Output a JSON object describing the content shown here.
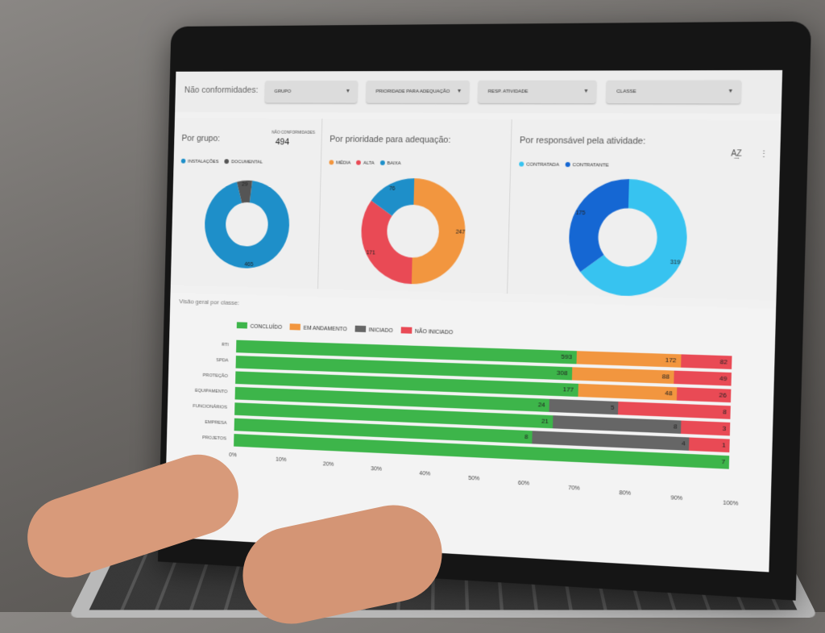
{
  "dashboard": {
    "title": "Não conformidades:",
    "filters": [
      {
        "label": "Grupo"
      },
      {
        "label": "Prioridade para adequação"
      },
      {
        "label": "Resp. atividade"
      },
      {
        "label": "Classe"
      }
    ]
  },
  "panels": {
    "grupo": {
      "title": "Por grupo:",
      "kpi_label": "NÃO CONFORMIDADES",
      "kpi_value": "494",
      "legend": [
        {
          "label": "INSTALAÇÕES",
          "color": "#1e8fc9"
        },
        {
          "label": "DOCUMENTAL",
          "color": "#555555"
        }
      ]
    },
    "prioridade": {
      "title": "Por prioridade para adequação:",
      "legend": [
        {
          "label": "MÉDIA",
          "color": "#f2963f"
        },
        {
          "label": "ALTA",
          "color": "#e94a55"
        },
        {
          "label": "BAIXA",
          "color": "#1e8fc9"
        }
      ]
    },
    "responsavel": {
      "title": "Por responsável pela atividade:",
      "legend": [
        {
          "label": "CONTRATADA",
          "color": "#37c3f0"
        },
        {
          "label": "CONTRATANTE",
          "color": "#1567d3"
        }
      ]
    }
  },
  "bar_section": {
    "title": "Visão geral por classe:"
  },
  "chart_data": [
    {
      "type": "pie",
      "donut": true,
      "labels": [
        "INSTALAÇÕES",
        "DOCUMENTAL"
      ],
      "values": [
        465,
        29
      ],
      "colors": [
        "#1e8fc9",
        "#555555"
      ]
    },
    {
      "type": "pie",
      "donut": true,
      "labels": [
        "MÉDIA",
        "ALTA",
        "BAIXA"
      ],
      "values": [
        247,
        171,
        76
      ],
      "colors": [
        "#f2963f",
        "#e94a55",
        "#1e8fc9"
      ]
    },
    {
      "type": "pie",
      "donut": true,
      "labels": [
        "CONTRATADA",
        "CONTRATANTE"
      ],
      "values": [
        319,
        175
      ],
      "colors": [
        "#37c3f0",
        "#1567d3"
      ]
    },
    {
      "type": "bar",
      "orientation": "horizontal",
      "stacked": "percent",
      "categories": [
        "RTI",
        "SPDA",
        "PROTEÇÃO",
        "EQUIPAMENTO",
        "FUNCIONÁRIOS",
        "EMPRESA",
        "PROJETOS"
      ],
      "series": [
        {
          "name": "CONCLUÍDO",
          "color": "#3db54a",
          "values": [
            593,
            308,
            177,
            24,
            21,
            8,
            7
          ]
        },
        {
          "name": "EM ANDAMENTO",
          "color": "#f2963f",
          "values": [
            172,
            88,
            48,
            0,
            0,
            0,
            0
          ]
        },
        {
          "name": "INICIADO",
          "color": "#666666",
          "values": [
            0,
            0,
            0,
            5,
            8,
            4,
            0
          ]
        },
        {
          "name": "NÃO INICIADO",
          "color": "#e94a55",
          "values": [
            82,
            49,
            26,
            8,
            3,
            1,
            0
          ]
        }
      ],
      "xticks": [
        "0%",
        "10%",
        "20%",
        "30%",
        "40%",
        "50%",
        "60%",
        "70%",
        "80%",
        "90%",
        "100%"
      ],
      "xlim": [
        0,
        100
      ],
      "legend": "top"
    }
  ]
}
